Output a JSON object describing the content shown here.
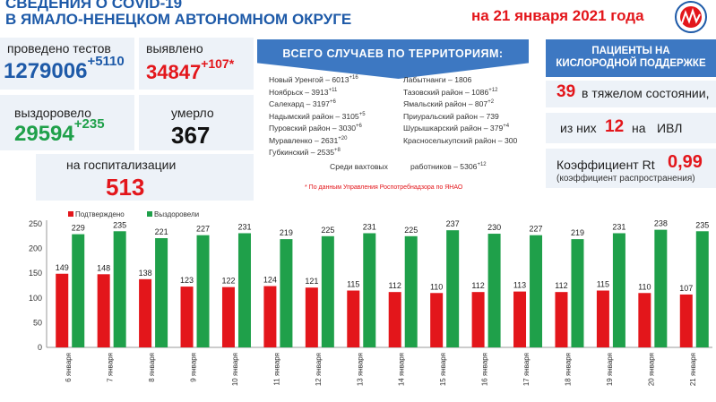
{
  "header": {
    "title_line1": "СВЕДЕНИЯ О COVID-19",
    "title_line2": "В ЯМАЛО-НЕНЕЦКОМ АВТОНОМНОМ ОКРУГЕ",
    "date": "на 21 января 2021 года"
  },
  "stats": {
    "tests_label": "проведено тестов",
    "tests_value": "1279006",
    "tests_delta": "+5110",
    "detected_label": "выявлено",
    "detected_value": "34847",
    "detected_delta": "+107*",
    "recovered_label": "выздоровело",
    "recovered_value": "29594",
    "recovered_delta": "+235",
    "died_label": "умерло",
    "died_value": "367",
    "hosp_label": "на госпитализации",
    "hosp_value": "513"
  },
  "territories": {
    "title": "ВСЕГО СЛУЧАЕВ ПО ТЕРРИТОРИЯМ:",
    "left": [
      {
        "name": "Новый Уренгой – 6013",
        "delta": "+16"
      },
      {
        "name": "Ноябрьск – 3913",
        "delta": "+11"
      },
      {
        "name": "Салехард – 3197",
        "delta": "+6"
      },
      {
        "name": "Надымский район – 3105",
        "delta": "+5"
      },
      {
        "name": "Пуровский район – 3030",
        "delta": "+6"
      },
      {
        "name": "Муравленко – 2631",
        "delta": "+20"
      },
      {
        "name": "Губкинский – 2535",
        "delta": "+8"
      }
    ],
    "right": [
      {
        "name": "Лабытнанги – 1806",
        "delta": ""
      },
      {
        "name": "Тазовский район – 1086",
        "delta": "+12"
      },
      {
        "name": "Ямальский район – 807",
        "delta": "+2"
      },
      {
        "name": "Приуральский район – 739",
        "delta": ""
      },
      {
        "name": "Шурышкарский район – 379",
        "delta": "+4"
      },
      {
        "name": "Красноселькупский район – 300",
        "delta": ""
      }
    ],
    "shift_left": "Среди вахтовых",
    "shift_right": "работников – 5306",
    "shift_delta": "+12",
    "footnote": "* По данным Управления Роспотребнадзора по ЯНАО"
  },
  "oxygen": {
    "title_line1": "ПАЦИЕНТЫ НА",
    "title_line2": "КИСЛОРОДНОЙ ПОДДЕРЖКЕ",
    "severe_value": "39",
    "severe_label": "в тяжелом состоянии,",
    "ivl_pre": "из них",
    "ivl_value": "12",
    "ivl_mid": "на",
    "ivl_label": "ИВЛ",
    "rt_label": "Коэффициент Rt",
    "rt_value": "0,99",
    "rt_sub": "(коэффициент распространения)"
  },
  "colors": {
    "red": "#e3161b",
    "green": "#1fa04a",
    "blue": "#1e5aa8",
    "panel": "#3d78c2"
  },
  "chart_data": {
    "type": "bar",
    "categories": [
      "6 января",
      "7 января",
      "8 января",
      "9 января",
      "10 января",
      "11 января",
      "12 января",
      "13 января",
      "14 января",
      "15 января",
      "16 января",
      "17 января",
      "18 января",
      "19 января",
      "20 января",
      "21 января"
    ],
    "series": [
      {
        "name": "Подтверждено",
        "color": "#e3161b",
        "values": [
          149,
          148,
          138,
          123,
          122,
          124,
          121,
          115,
          112,
          110,
          112,
          113,
          112,
          115,
          110,
          107
        ]
      },
      {
        "name": "Выздоровели",
        "color": "#1fa04a",
        "values": [
          229,
          235,
          221,
          227,
          231,
          219,
          225,
          231,
          225,
          237,
          230,
          227,
          219,
          231,
          238,
          235
        ]
      }
    ],
    "ylim": [
      0,
      250
    ],
    "yticks": [
      0,
      50,
      100,
      150,
      200,
      250
    ],
    "grid": false,
    "legend": "top-left"
  }
}
